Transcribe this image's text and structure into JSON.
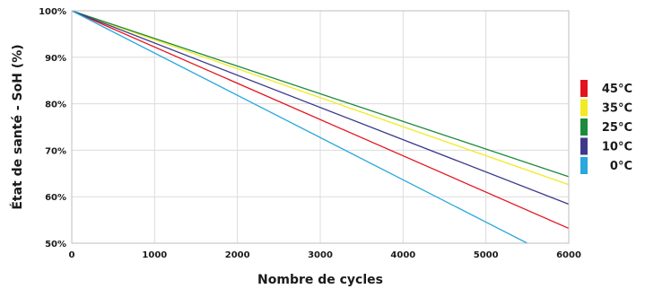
{
  "chart_data": {
    "type": "line",
    "xlabel": "Nombre de cycles",
    "ylabel": "État de santé - SoH (%)",
    "xlim": [
      0,
      6000
    ],
    "ylim": [
      50,
      100
    ],
    "x_ticks": [
      0,
      1000,
      2000,
      3000,
      4000,
      5000,
      6000
    ],
    "y_ticks": [
      50,
      60,
      70,
      80,
      90,
      100
    ],
    "y_tick_suffix": "%",
    "grid": true,
    "legend_position": "right",
    "series": [
      {
        "name": "45°C",
        "color": "#e3141c",
        "x": [
          0,
          6000
        ],
        "y": [
          100,
          53.2
        ]
      },
      {
        "name": "35°C",
        "color": "#f2ea22",
        "x": [
          0,
          6000
        ],
        "y": [
          100,
          62.6
        ]
      },
      {
        "name": "25°C",
        "color": "#1d8a3c",
        "x": [
          0,
          6000
        ],
        "y": [
          100,
          64.3
        ]
      },
      {
        "name": "10°C",
        "color": "#3d3a8c",
        "x": [
          0,
          6000
        ],
        "y": [
          100,
          58.4
        ]
      },
      {
        "name": "0°C",
        "color": "#2aa7dd",
        "x": [
          0,
          5500
        ],
        "y": [
          100,
          50
        ]
      }
    ]
  }
}
